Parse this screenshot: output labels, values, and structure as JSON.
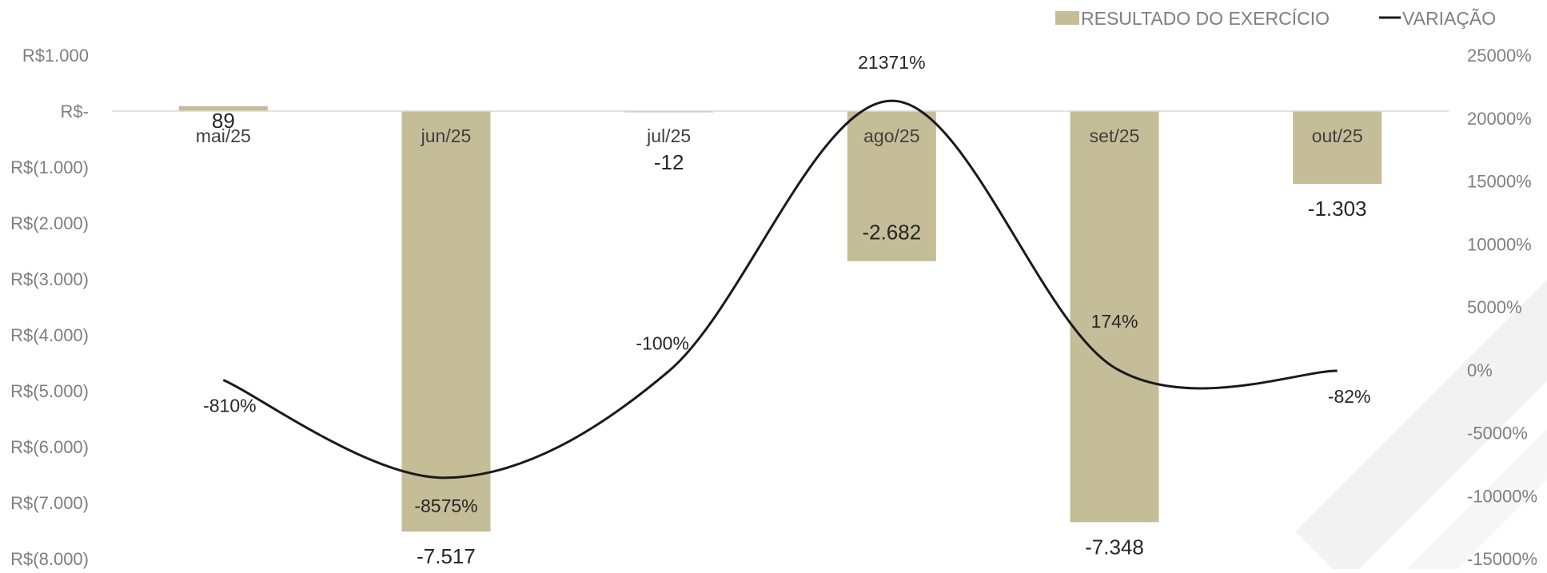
{
  "chart_data": {
    "type": "bar",
    "categories": [
      "mai/25",
      "jun/25",
      "jul/25",
      "ago/25",
      "set/25",
      "out/25"
    ],
    "series": [
      {
        "name": "RESULTADO DO EXERCÍCIO",
        "type": "bar",
        "axis": "left",
        "color": "#c5bd97",
        "values": [
          89,
          -7517,
          -12,
          -2682,
          -7348,
          -1303
        ],
        "labels": [
          "89",
          "-7.517",
          "-12",
          "-2.682",
          "-7.348",
          "-1.303"
        ]
      },
      {
        "name": "VARIAÇÃO",
        "type": "line",
        "axis": "right",
        "smooth": true,
        "color": "#1a1a1a",
        "values": [
          -810,
          -8575,
          -100,
          21371,
          174,
          -82
        ],
        "labels": [
          "-810%",
          "-8575%",
          "-100%",
          "21371%",
          "174%",
          "-82%"
        ]
      }
    ],
    "y_left": {
      "min": -8000,
      "max": 1000,
      "ticks": [
        1000,
        0,
        -1000,
        -2000,
        -3000,
        -4000,
        -5000,
        -6000,
        -7000,
        -8000
      ],
      "tick_labels": [
        "R$1.000",
        "R$-",
        "R$(1.000)",
        "R$(2.000)",
        "R$(3.000)",
        "R$(4.000)",
        "R$(5.000)",
        "R$(6.000)",
        "R$(7.000)",
        "R$(8.000)"
      ]
    },
    "y_right": {
      "min": -15000,
      "max": 25000,
      "ticks": [
        25000,
        20000,
        15000,
        10000,
        5000,
        0,
        -5000,
        -10000,
        -15000
      ],
      "tick_labels": [
        "25000%",
        "20000%",
        "15000%",
        "10000%",
        "5000%",
        "0%",
        "-5000%",
        "-10000%",
        "-15000%"
      ]
    },
    "legend": {
      "position": "top-right"
    },
    "grid": false
  }
}
